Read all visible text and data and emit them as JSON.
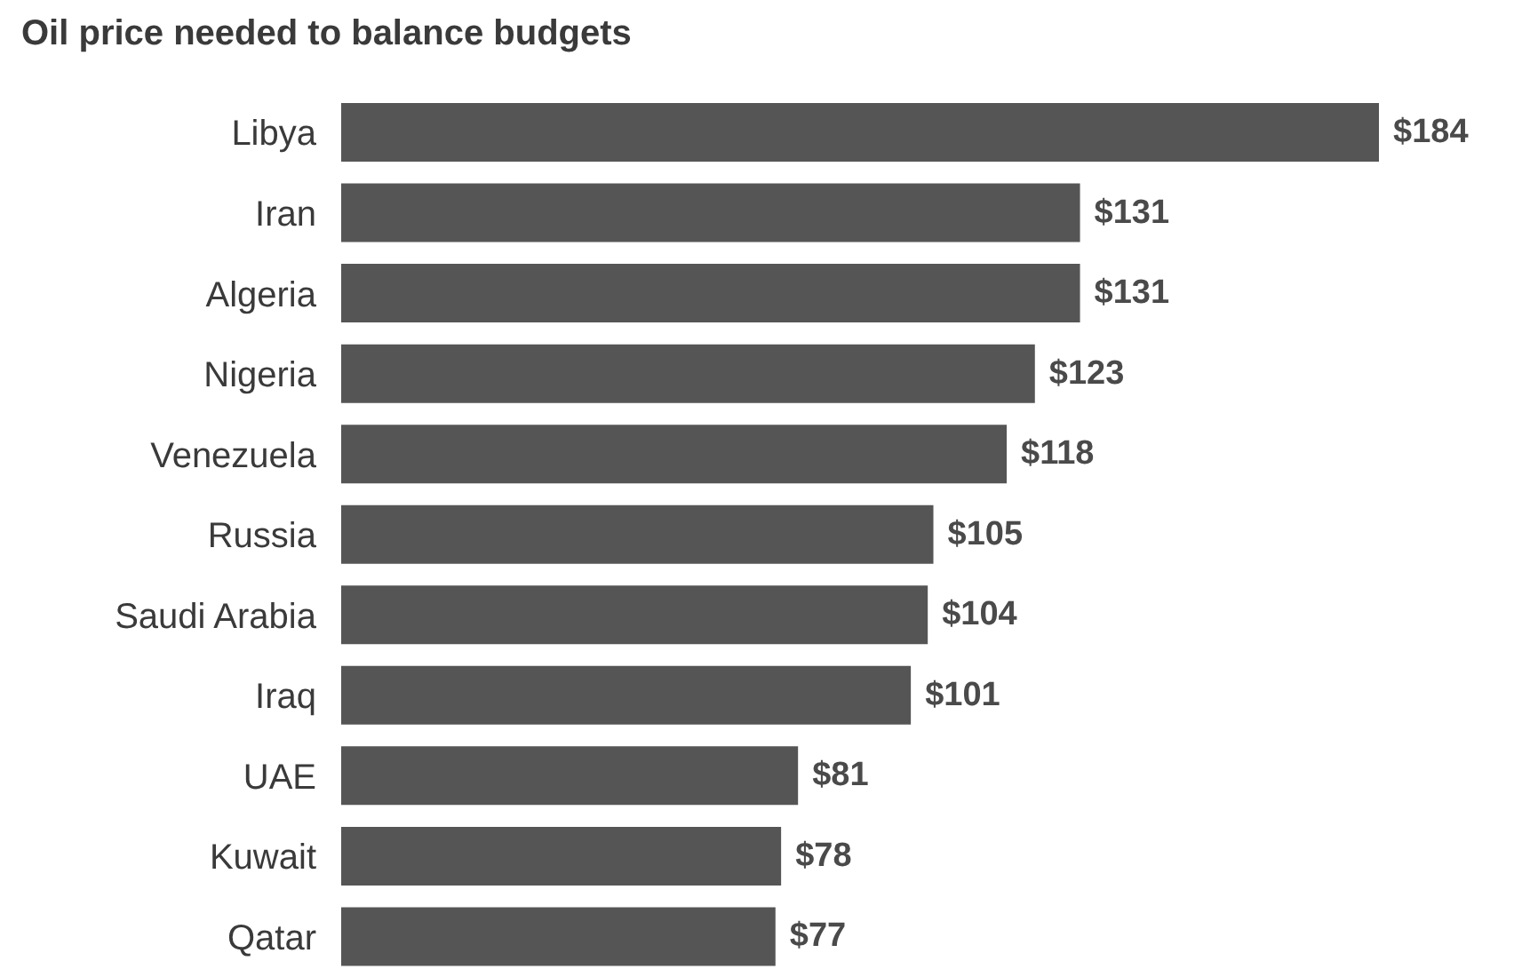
{
  "chart_data": {
    "type": "bar",
    "orientation": "horizontal",
    "title": "Oil price needed to balance budgets",
    "categories": [
      "Libya",
      "Iran",
      "Algeria",
      "Nigeria",
      "Venezuela",
      "Russia",
      "Saudi Arabia",
      "Iraq",
      "UAE",
      "Kuwait",
      "Qatar"
    ],
    "values": [
      184,
      131,
      131,
      123,
      118,
      105,
      104,
      101,
      81,
      78,
      77
    ],
    "value_labels": [
      "$184",
      "$131",
      "$131",
      "$123",
      "$118",
      "$105",
      "$104",
      "$101",
      "$81",
      "$78",
      "$77"
    ],
    "color": "#555555",
    "grid": false,
    "legend": false
  }
}
